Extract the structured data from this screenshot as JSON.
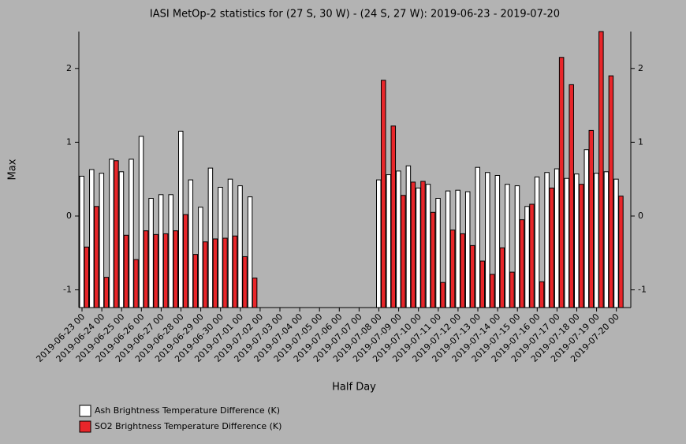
{
  "chart_data": {
    "type": "bar",
    "title": "IASI MetOp-2 statistics for (27 S, 30 W) - (24 S, 27 W): 2019-06-23 - 2019-07-20",
    "xlabel": "Half Day",
    "ylabel": "Max",
    "categories": [
      "2019-06-23 00",
      null,
      "2019-06-24 00",
      null,
      "2019-06-25 00",
      null,
      "2019-06-26 00",
      null,
      "2019-06-27 00",
      null,
      "2019-06-28 00",
      null,
      "2019-06-29 00",
      null,
      "2019-06-30 00",
      null,
      "2019-07-01 00",
      null,
      "2019-07-02 00",
      null,
      "2019-07-03 00",
      null,
      "2019-07-04 00",
      null,
      "2019-07-05 00",
      null,
      "2019-07-06 00",
      null,
      "2019-07-07 00",
      null,
      "2019-07-08 00",
      null,
      "2019-07-09 00",
      null,
      "2019-07-10 00",
      null,
      "2019-07-11 00",
      null,
      "2019-07-12 00",
      null,
      "2019-07-13 00",
      null,
      "2019-07-14 00",
      null,
      "2019-07-15 00",
      null,
      "2019-07-16 00",
      null,
      "2019-07-17 00",
      null,
      "2019-07-18 00",
      null,
      "2019-07-19 00",
      null,
      "2019-07-20 00"
    ],
    "series": [
      {
        "name": "Ash Brightness Temperature Difference (K)",
        "color": "#ffffff",
        "values": [
          0.54,
          0.63,
          0.58,
          0.77,
          0.6,
          0.77,
          1.08,
          0.24,
          0.29,
          0.29,
          1.15,
          0.49,
          0.12,
          0.65,
          0.39,
          0.5,
          0.41,
          0.26,
          null,
          null,
          null,
          null,
          null,
          null,
          null,
          null,
          null,
          null,
          null,
          null,
          0.49,
          0.56,
          0.61,
          0.68,
          0.38,
          0.43,
          0.24,
          0.34,
          0.35,
          0.33,
          0.66,
          0.59,
          0.55,
          0.43,
          0.41,
          0.13,
          0.53,
          0.59,
          0.64,
          0.51,
          0.57,
          0.9,
          0.58,
          0.6,
          0.5
        ]
      },
      {
        "name": "SO2 Brightness Temperature Difference (K)",
        "color": "#e8262a",
        "values": [
          -0.42,
          0.13,
          -0.83,
          0.75,
          -0.26,
          -0.59,
          -0.2,
          -0.25,
          -0.24,
          -0.2,
          0.02,
          -0.52,
          -0.35,
          -0.31,
          -0.3,
          -0.27,
          -0.55,
          -0.84,
          null,
          null,
          null,
          null,
          null,
          null,
          null,
          null,
          null,
          null,
          null,
          null,
          1.84,
          1.22,
          0.28,
          0.46,
          0.47,
          0.05,
          -0.9,
          -0.19,
          -0.24,
          -0.4,
          -0.61,
          -0.79,
          -0.43,
          -0.76,
          -0.05,
          0.16,
          -0.89,
          0.38,
          2.15,
          1.78,
          0.43,
          1.16,
          2.5,
          1.9,
          0.27
        ]
      }
    ],
    "ylim": [
      -1.24,
      2.5
    ],
    "yticks": [
      -1,
      0,
      1,
      2
    ]
  }
}
